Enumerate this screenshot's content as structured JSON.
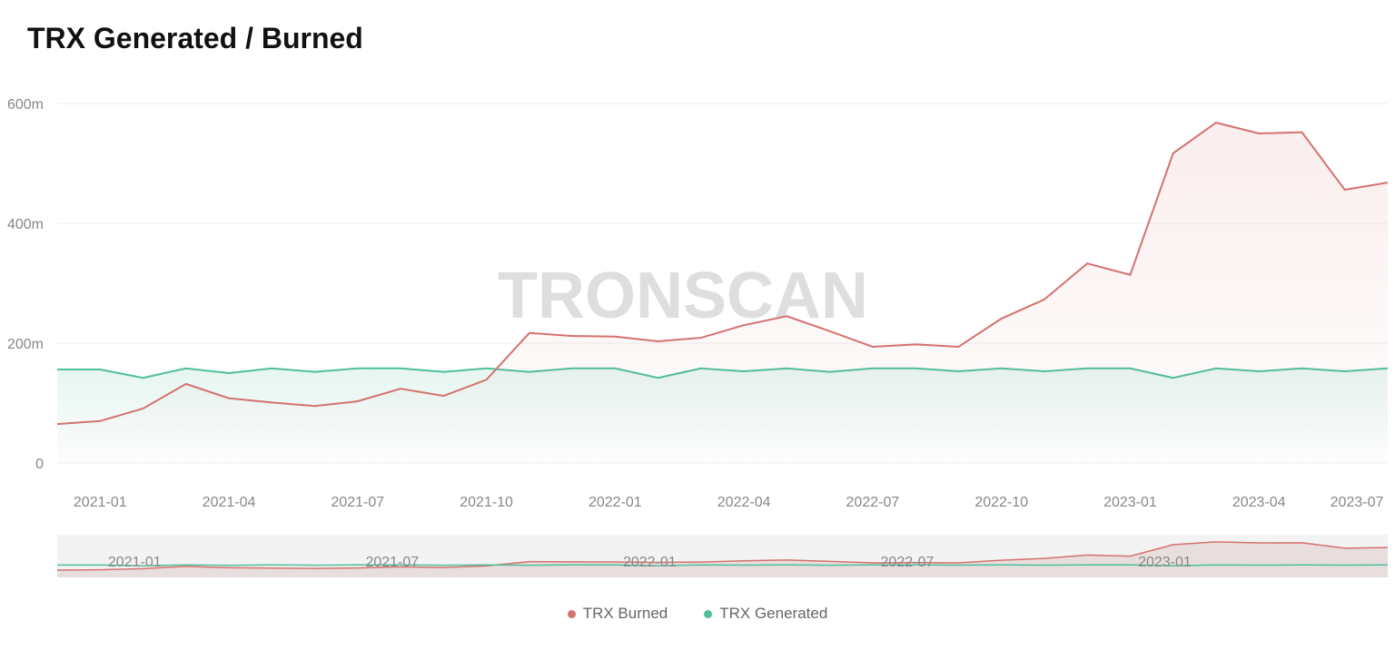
{
  "chart_data": {
    "type": "area",
    "title": "TRX Generated / Burned",
    "watermark": "TRONSCAN",
    "x": [
      "2020-12",
      "2021-01",
      "2021-02",
      "2021-03",
      "2021-04",
      "2021-05",
      "2021-06",
      "2021-07",
      "2021-08",
      "2021-09",
      "2021-10",
      "2021-11",
      "2021-12",
      "2022-01",
      "2022-02",
      "2022-03",
      "2022-04",
      "2022-05",
      "2022-06",
      "2022-07",
      "2022-08",
      "2022-09",
      "2022-10",
      "2022-11",
      "2022-12",
      "2023-01",
      "2023-02",
      "2023-03",
      "2023-04",
      "2023-05",
      "2023-06",
      "2023-07"
    ],
    "x_tick_labels": [
      "2021-01",
      "2021-04",
      "2021-07",
      "2021-10",
      "2022-01",
      "2022-04",
      "2022-07",
      "2022-10",
      "2023-01",
      "2023-04",
      "2023-07"
    ],
    "slider_labels": [
      "2021-01",
      "2021-07",
      "2022-01",
      "2022-07",
      "2023-01"
    ],
    "y_tick_labels": [
      "0",
      "200m",
      "400m",
      "600m"
    ],
    "ylim": [
      0,
      600
    ],
    "yunit": "m",
    "grid": true,
    "legend_position": "bottom",
    "series": [
      {
        "name": "TRX Burned",
        "color": "#d4726f",
        "values": [
          65,
          70,
          91,
          132,
          108,
          101,
          95,
          103,
          124,
          112,
          139,
          217,
          212,
          211,
          203,
          209,
          230,
          245,
          220,
          194,
          198,
          194,
          241,
          273,
          333,
          314,
          517,
          568,
          550,
          552,
          456,
          468
        ]
      },
      {
        "name": "TRX Generated",
        "color": "#4dbf9b",
        "values": [
          156,
          156,
          142,
          158,
          150,
          158,
          152,
          158,
          158,
          152,
          158,
          152,
          158,
          158,
          142,
          158,
          153,
          158,
          152,
          158,
          158,
          153,
          158,
          153,
          158,
          158,
          142,
          158,
          153,
          158,
          153,
          158
        ]
      }
    ]
  }
}
